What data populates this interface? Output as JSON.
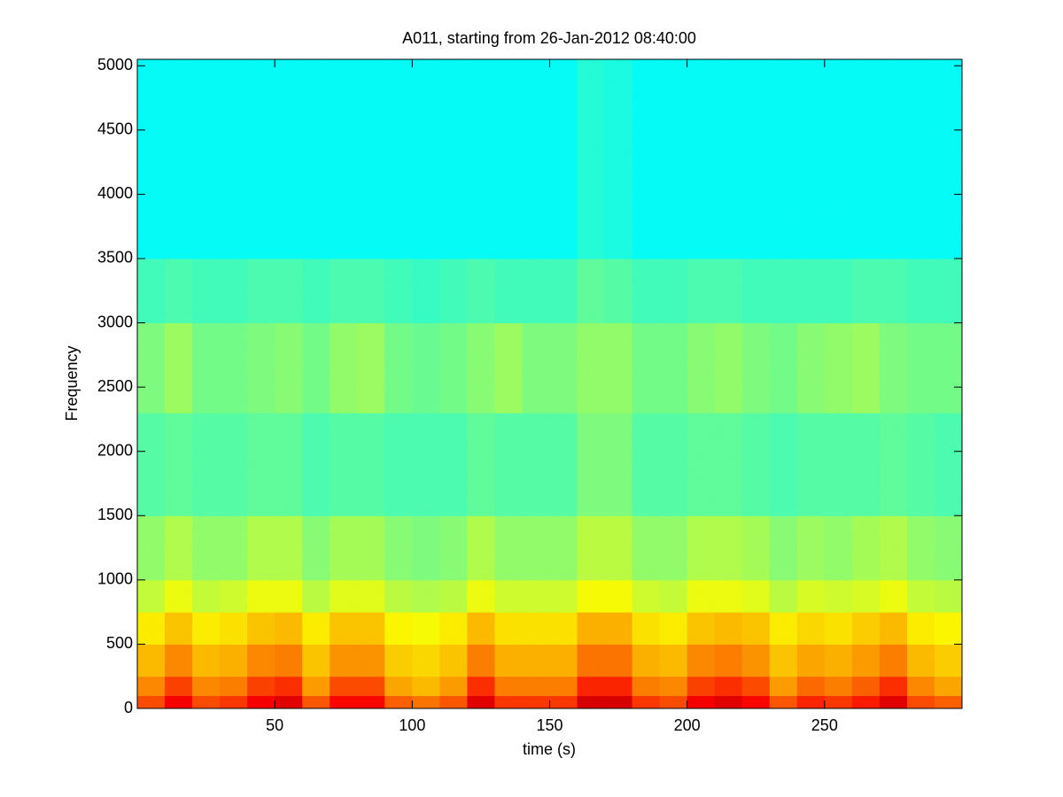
{
  "chart_data": {
    "type": "heatmap",
    "title": "A011, starting from 26-Jan-2012 08:40:00",
    "x_label": "time (s)",
    "y_label": "Frequency",
    "xlim": [
      0,
      300
    ],
    "ylim": [
      0,
      5050
    ],
    "xticks": [
      50,
      100,
      150,
      200,
      250
    ],
    "yticks": [
      0,
      500,
      1000,
      1500,
      2000,
      2500,
      3000,
      3500,
      4000,
      4500,
      5000
    ],
    "colormap": "jet",
    "clim": [
      0,
      1
    ],
    "xbins": [
      0,
      10,
      20,
      30,
      40,
      50,
      60,
      70,
      80,
      90,
      100,
      110,
      120,
      130,
      140,
      150,
      160,
      170,
      180,
      190,
      200,
      210,
      220,
      230,
      240,
      250,
      260,
      270,
      280,
      290,
      300
    ],
    "ybins": [
      0,
      100,
      250,
      500,
      750,
      1000,
      1500,
      2300,
      3000,
      3500,
      5050
    ],
    "values": [
      [
        0.8,
        0.88,
        0.8,
        0.82,
        0.88,
        0.9,
        0.79,
        0.87,
        0.87,
        0.78,
        0.76,
        0.79,
        0.9,
        0.82,
        0.82,
        0.82,
        0.91,
        0.91,
        0.82,
        0.8,
        0.88,
        0.9,
        0.87,
        0.79,
        0.84,
        0.82,
        0.85,
        0.9,
        0.8,
        0.78
      ],
      [
        0.74,
        0.81,
        0.74,
        0.75,
        0.81,
        0.83,
        0.72,
        0.8,
        0.8,
        0.71,
        0.69,
        0.72,
        0.83,
        0.75,
        0.75,
        0.75,
        0.84,
        0.84,
        0.75,
        0.74,
        0.81,
        0.83,
        0.8,
        0.72,
        0.77,
        0.75,
        0.78,
        0.83,
        0.74,
        0.71
      ],
      [
        0.69,
        0.74,
        0.69,
        0.7,
        0.74,
        0.75,
        0.68,
        0.73,
        0.73,
        0.67,
        0.66,
        0.68,
        0.75,
        0.7,
        0.7,
        0.7,
        0.76,
        0.76,
        0.7,
        0.69,
        0.74,
        0.75,
        0.73,
        0.68,
        0.71,
        0.7,
        0.72,
        0.75,
        0.69,
        0.67
      ],
      [
        0.64,
        0.68,
        0.64,
        0.65,
        0.68,
        0.69,
        0.64,
        0.68,
        0.68,
        0.63,
        0.62,
        0.64,
        0.69,
        0.65,
        0.65,
        0.65,
        0.7,
        0.7,
        0.65,
        0.64,
        0.68,
        0.69,
        0.68,
        0.64,
        0.66,
        0.65,
        0.67,
        0.69,
        0.64,
        0.63
      ],
      [
        0.57,
        0.61,
        0.57,
        0.58,
        0.61,
        0.61,
        0.56,
        0.6,
        0.6,
        0.56,
        0.55,
        0.56,
        0.61,
        0.58,
        0.58,
        0.58,
        0.62,
        0.62,
        0.58,
        0.57,
        0.61,
        0.61,
        0.6,
        0.56,
        0.59,
        0.58,
        0.59,
        0.61,
        0.57,
        0.56
      ],
      [
        0.52,
        0.55,
        0.52,
        0.52,
        0.55,
        0.55,
        0.51,
        0.54,
        0.54,
        0.51,
        0.5,
        0.51,
        0.55,
        0.52,
        0.52,
        0.52,
        0.56,
        0.56,
        0.52,
        0.52,
        0.55,
        0.55,
        0.54,
        0.51,
        0.53,
        0.52,
        0.54,
        0.55,
        0.52,
        0.51
      ],
      [
        0.46,
        0.47,
        0.46,
        0.46,
        0.47,
        0.47,
        0.45,
        0.46,
        0.46,
        0.45,
        0.45,
        0.45,
        0.47,
        0.46,
        0.46,
        0.46,
        0.5,
        0.5,
        0.46,
        0.46,
        0.47,
        0.47,
        0.46,
        0.45,
        0.46,
        0.46,
        0.46,
        0.47,
        0.46,
        0.45
      ],
      [
        0.5,
        0.53,
        0.49,
        0.49,
        0.5,
        0.51,
        0.49,
        0.52,
        0.53,
        0.49,
        0.48,
        0.49,
        0.51,
        0.53,
        0.5,
        0.5,
        0.52,
        0.52,
        0.49,
        0.49,
        0.51,
        0.52,
        0.5,
        0.49,
        0.51,
        0.52,
        0.53,
        0.5,
        0.49,
        0.49
      ],
      [
        0.44,
        0.45,
        0.44,
        0.44,
        0.45,
        0.45,
        0.44,
        0.45,
        0.45,
        0.44,
        0.43,
        0.44,
        0.45,
        0.44,
        0.44,
        0.44,
        0.47,
        0.46,
        0.44,
        0.44,
        0.45,
        0.45,
        0.44,
        0.44,
        0.44,
        0.44,
        0.45,
        0.45,
        0.44,
        0.44
      ],
      [
        0.38,
        0.38,
        0.38,
        0.38,
        0.38,
        0.38,
        0.38,
        0.38,
        0.38,
        0.38,
        0.38,
        0.38,
        0.38,
        0.38,
        0.38,
        0.38,
        0.41,
        0.4,
        0.38,
        0.38,
        0.38,
        0.38,
        0.38,
        0.38,
        0.38,
        0.38,
        0.38,
        0.38,
        0.38,
        0.38
      ]
    ]
  }
}
